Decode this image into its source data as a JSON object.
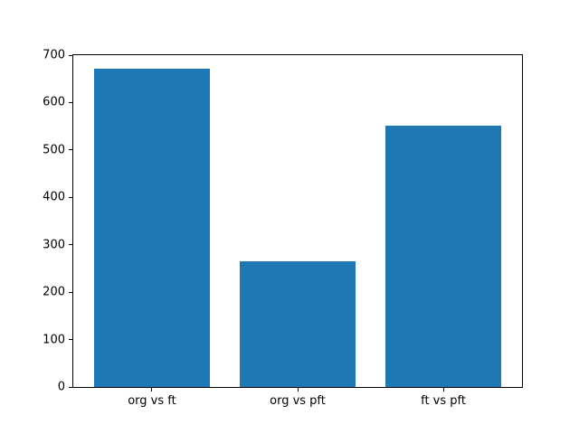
{
  "chart_data": {
    "type": "bar",
    "title": "",
    "xlabel": "",
    "ylabel": "",
    "categories": [
      "org vs ft",
      "org vs pft",
      "ft vs pft"
    ],
    "values": [
      672,
      265,
      552
    ],
    "bar_color": "#1f77b4",
    "ylim": [
      0,
      700
    ],
    "yticks": [
      0,
      100,
      200,
      300,
      400,
      500,
      600,
      700
    ],
    "xlim": [
      -0.54,
      2.54
    ],
    "bar_width": 0.8,
    "grid": "off",
    "legend": "none"
  }
}
